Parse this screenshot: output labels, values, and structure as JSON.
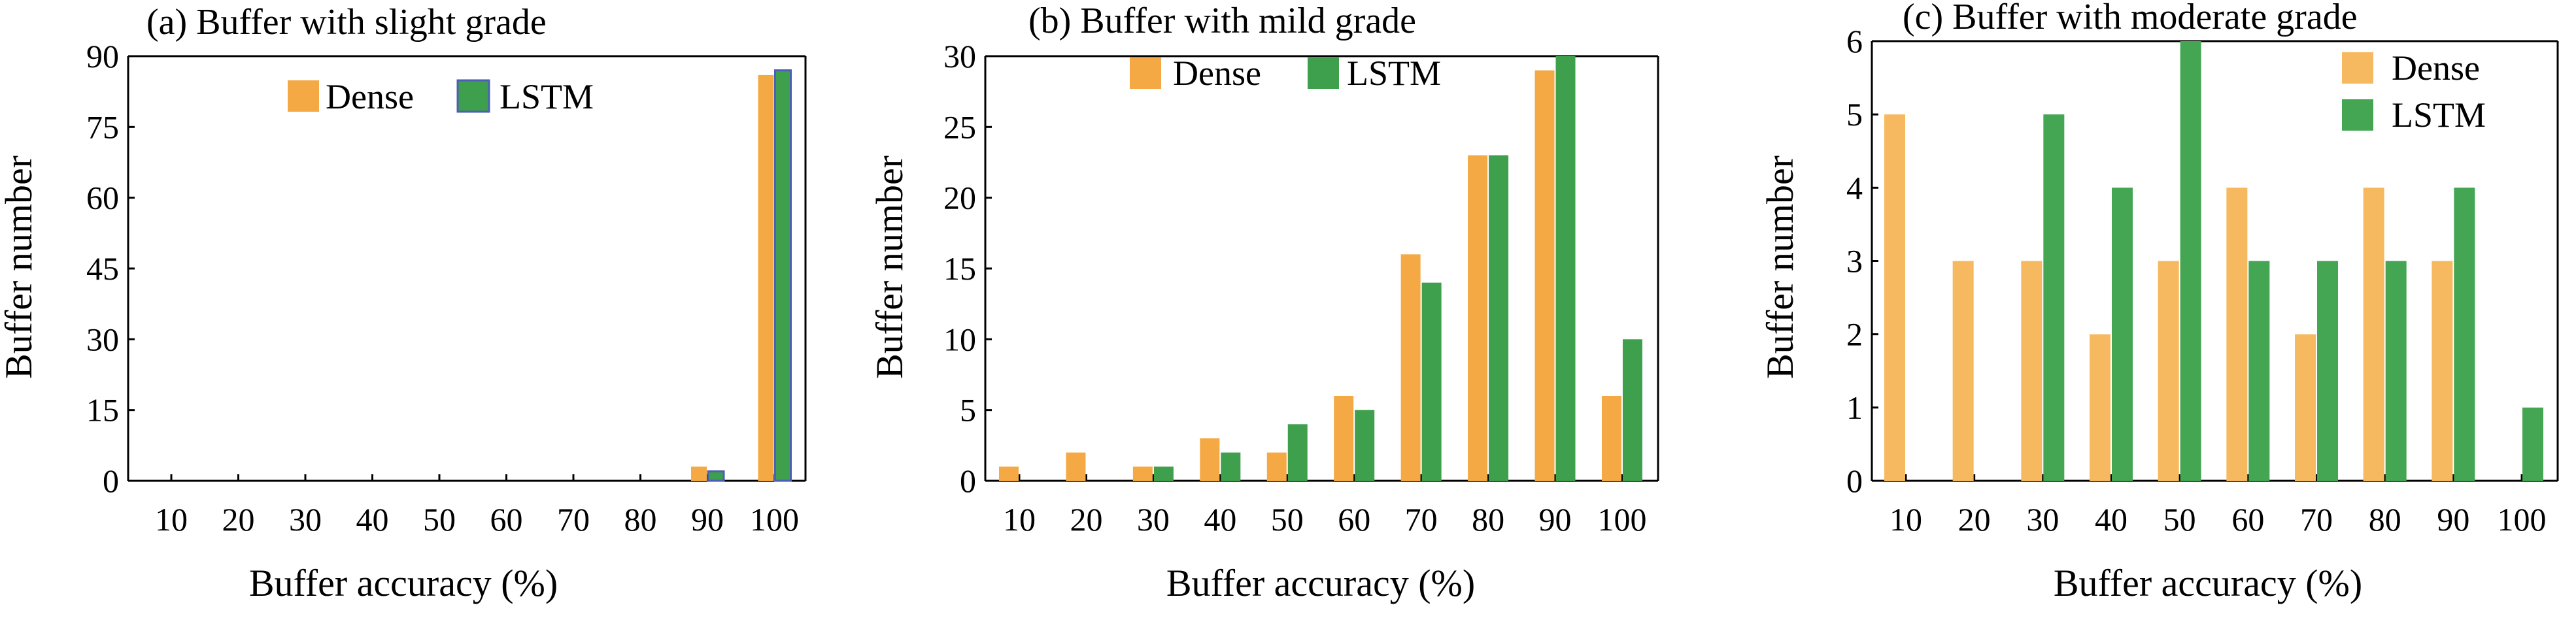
{
  "colors": {
    "dense": "#F5A945",
    "lstm": "#3E9F4C",
    "dense_light": "#F7B95F",
    "lstm_light": "#44A553",
    "lstm_outline": "#4A5FB5"
  },
  "chart_data": [
    {
      "type": "bar",
      "title": "(a)  Buffer with slight grade",
      "xlabel": "Buffer accuracy (%)",
      "ylabel": "Buffer number",
      "categories": [
        "10",
        "20",
        "30",
        "40",
        "50",
        "60",
        "70",
        "80",
        "90",
        "100"
      ],
      "yticks": [
        "0",
        "15",
        "30",
        "45",
        "60",
        "75",
        "90"
      ],
      "ylim": [
        0,
        90
      ],
      "legend_position": "top-right",
      "series": [
        {
          "name": "Dense",
          "values": [
            0,
            0,
            0,
            0,
            0,
            0,
            0,
            0,
            3,
            86
          ]
        },
        {
          "name": "LSTM",
          "values": [
            0,
            0,
            0,
            0,
            0,
            0,
            0,
            0,
            2,
            87
          ]
        }
      ]
    },
    {
      "type": "bar",
      "title": "(b)  Buffer with mild grade",
      "xlabel": "Buffer accuracy (%)",
      "ylabel": "Buffer number",
      "categories": [
        "10",
        "20",
        "30",
        "40",
        "50",
        "60",
        "70",
        "80",
        "90",
        "100"
      ],
      "yticks": [
        "0",
        "5",
        "10",
        "15",
        "20",
        "25",
        "30"
      ],
      "ylim": [
        0,
        30
      ],
      "legend_position": "top",
      "series": [
        {
          "name": "Dense",
          "values": [
            1,
            2,
            1,
            3,
            2,
            6,
            16,
            23,
            29,
            6
          ]
        },
        {
          "name": "LSTM",
          "values": [
            0,
            0,
            1,
            2,
            4,
            5,
            14,
            23,
            30,
            10
          ]
        }
      ]
    },
    {
      "type": "bar",
      "title": "(c)  Buffer with moderate grade",
      "xlabel": "Buffer accuracy (%)",
      "ylabel": "Buffer number",
      "categories": [
        "10",
        "20",
        "30",
        "40",
        "50",
        "60",
        "70",
        "80",
        "90",
        "100"
      ],
      "yticks": [
        "0",
        "1",
        "2",
        "3",
        "4",
        "5",
        "6"
      ],
      "ylim": [
        0,
        6
      ],
      "legend_position": "top-right",
      "series": [
        {
          "name": "Dense",
          "values": [
            5,
            3,
            3,
            2,
            3,
            4,
            2,
            4,
            3,
            0
          ]
        },
        {
          "name": "LSTM",
          "values": [
            0,
            0,
            5,
            4,
            6,
            3,
            3,
            3,
            4,
            1
          ]
        }
      ]
    }
  ]
}
